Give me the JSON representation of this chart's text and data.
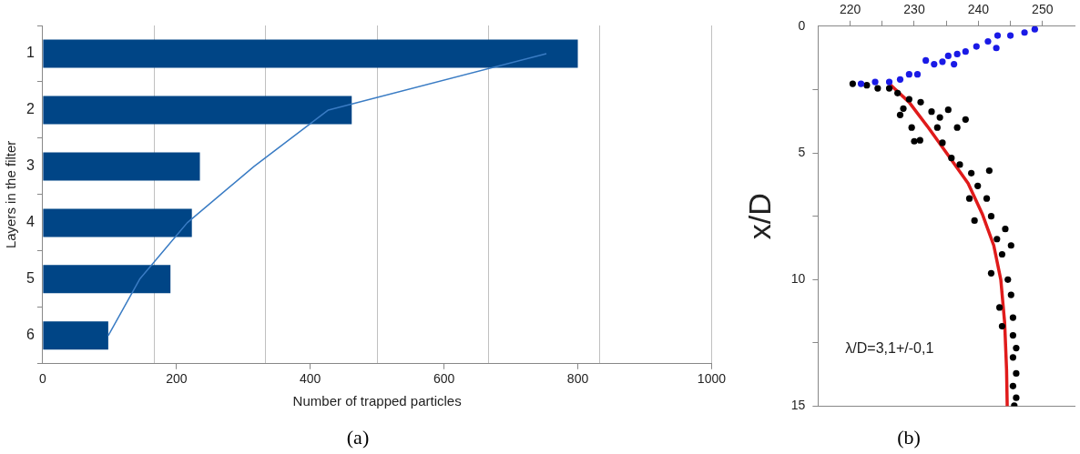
{
  "chart_data": [
    {
      "type": "bar",
      "orientation": "horizontal",
      "subtitle": "(a)",
      "xlabel": "Number of trapped particles",
      "ylabel": "Layers in the filter",
      "categories": [
        "1",
        "2",
        "3",
        "4",
        "5",
        "6"
      ],
      "series": [
        {
          "type": "bar",
          "color": "#004586",
          "values": [
            800,
            462,
            235,
            223,
            191,
            98
          ]
        },
        {
          "type": "line",
          "color": "#3a7cc4",
          "values": [
            753,
            427,
            316,
            216,
            145,
            98
          ]
        }
      ],
      "xlim": [
        0,
        1000
      ],
      "xticks": [
        0,
        {
          "value": 166.7,
          "label": null
        },
        200,
        {
          "value": 333.3,
          "label": null
        },
        400,
        {
          "value": 500,
          "label": null
        },
        600,
        {
          "value": 666.7,
          "label": null
        },
        800,
        {
          "value": 833.3,
          "label": null
        },
        1000
      ],
      "grid": "x",
      "legend": false
    },
    {
      "type": "scatter",
      "subtitle": "(b)",
      "ylabel": "x/D",
      "annotations": [
        "λ/D=3,1+/-0,1"
      ],
      "series": [
        {
          "type": "scatter",
          "marker": "circle",
          "color": "#1a1ae6",
          "x": [
            248.8,
            247.2,
            245,
            243,
            241.5,
            242.8,
            239.7,
            238,
            236.7,
            235.3,
            234.4,
            233.1,
            236.2,
            231.8,
            230.5,
            229.2,
            227.8,
            226.1,
            223.9,
            221.7
          ],
          "values": [
            0.12,
            0.25,
            0.37,
            0.37,
            0.6,
            0.86,
            0.8,
            1.0,
            1.1,
            1.17,
            1.4,
            1.5,
            1.5,
            1.35,
            1.9,
            1.9,
            2.1,
            2.2,
            2.2,
            2.27
          ]
        },
        {
          "type": "scatter",
          "marker": "circle",
          "color": "#000000",
          "x": [
            220.4,
            222.6,
            224.3,
            226.1,
            227.4,
            229.2,
            228.3,
            231,
            227.8,
            232.7,
            235.3,
            238,
            234,
            229.6,
            233.6,
            236.7,
            230,
            230.9,
            234.4,
            235.8,
            237.1,
            238.9,
            241.7,
            239.9,
            238.6,
            241.3,
            239.4,
            242,
            244.2,
            242.9,
            245.1,
            243.7,
            242,
            244.6,
            245.1,
            243.3,
            245.4,
            243.7,
            245.4,
            245.9,
            245.4,
            245.9,
            245.4,
            245.9,
            245.6
          ],
          "values": [
            2.27,
            2.33,
            2.45,
            2.45,
            2.64,
            2.88,
            3.25,
            3.0,
            3.5,
            3.37,
            3.3,
            3.68,
            3.6,
            4.0,
            4.0,
            4.0,
            4.54,
            4.5,
            4.6,
            5.2,
            5.46,
            5.8,
            5.7,
            6.3,
            6.8,
            6.8,
            7.67,
            7.5,
            8.0,
            8.4,
            8.65,
            9.0,
            9.75,
            10.0,
            10.6,
            11.1,
            11.5,
            11.84,
            12.2,
            12.7,
            13.07,
            13.7,
            14.2,
            14.66,
            14.97
          ]
        },
        {
          "type": "line",
          "marker": "none",
          "color": "#e01b1b",
          "x": [
            226.1,
            229.2,
            232.2,
            235.3,
            238.4,
            240.6,
            242.4,
            243.5,
            244.1,
            244.4,
            244.5
          ],
          "values": [
            2.27,
            3.0,
            4.0,
            5.1,
            6.2,
            7.4,
            8.65,
            10,
            11.7,
            13.56,
            15
          ]
        }
      ],
      "xlim": [
        215,
        255
      ],
      "xticks": [
        220,
        {
          "value": 225,
          "label": null
        },
        230,
        {
          "value": 235,
          "label": null
        },
        240,
        {
          "value": 245,
          "label": null
        },
        250
      ],
      "ylim": [
        15,
        0
      ],
      "yticks": [
        0,
        {
          "value": 2.5,
          "label": null
        },
        5,
        {
          "value": 7.5,
          "label": null
        },
        10,
        {
          "value": 12.5,
          "label": null
        },
        15
      ],
      "grid": false,
      "legend": false
    }
  ]
}
